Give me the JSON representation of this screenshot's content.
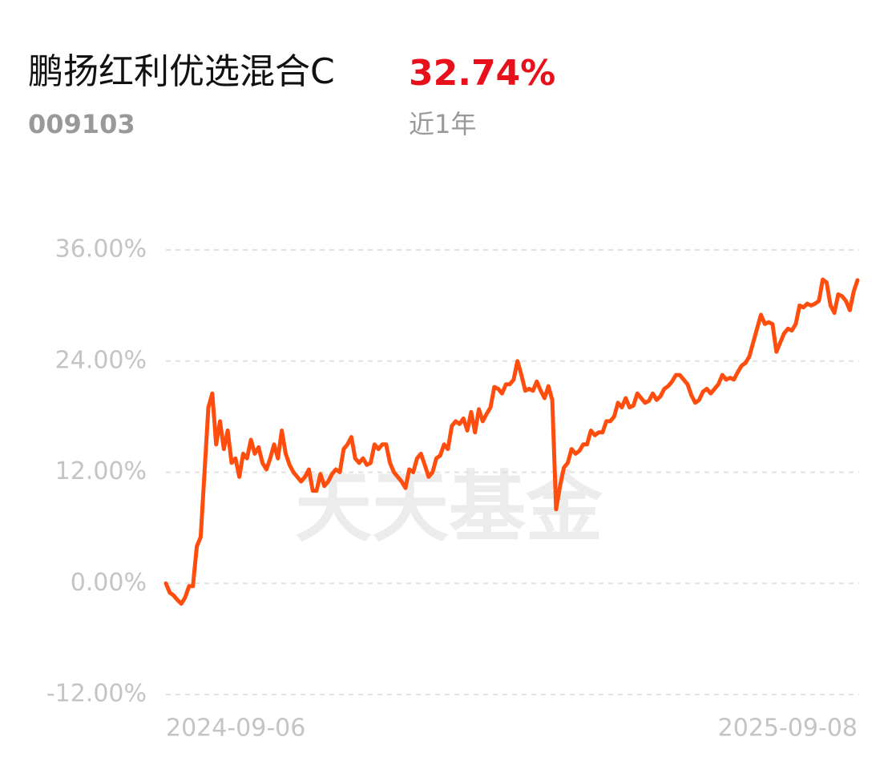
{
  "header": {
    "fund_name": "鹏扬红利优选混合C",
    "return": "32.74%",
    "code": "009103",
    "period": "近1年"
  },
  "chart_data": {
    "type": "line",
    "watermark": "天天基金",
    "color": "#ff4d0d",
    "ylim": [
      -12,
      36
    ],
    "yticks": [
      {
        "value": -12,
        "label": "-12.00%"
      },
      {
        "value": 0,
        "label": "0.00%"
      },
      {
        "value": 12,
        "label": "12.00%"
      },
      {
        "value": 24,
        "label": "24.00%"
      },
      {
        "value": 36,
        "label": "36.00%"
      }
    ],
    "grid": true,
    "categories": [
      "2024-09-06",
      null,
      null,
      null,
      null,
      null,
      null,
      null,
      null,
      null,
      null,
      null,
      null,
      null,
      null,
      null,
      null,
      null,
      null,
      null,
      null,
      null,
      null,
      null,
      null,
      null,
      null,
      null,
      null,
      null,
      null,
      null,
      null,
      null,
      null,
      null,
      null,
      null,
      null,
      null,
      null,
      null,
      null,
      null,
      null,
      null,
      null,
      null,
      null,
      null,
      null,
      null,
      null,
      null,
      null,
      null,
      null,
      null,
      null,
      null,
      null,
      null,
      null,
      null,
      null,
      null,
      null,
      null,
      null,
      null,
      null,
      null,
      null,
      null,
      null,
      null,
      null,
      null,
      null,
      null,
      null,
      null,
      null,
      null,
      null,
      null,
      null,
      null,
      null,
      null,
      null,
      null,
      null,
      null,
      null,
      null,
      null,
      null,
      null,
      null,
      null,
      null,
      null,
      null,
      null,
      null,
      null,
      null,
      null,
      null,
      null,
      null,
      null,
      null,
      null,
      null,
      null,
      null,
      null,
      null,
      null,
      null,
      null,
      null,
      null,
      null,
      null,
      null,
      null,
      null,
      null,
      null,
      null,
      null,
      null,
      null,
      null,
      null,
      null,
      null,
      null,
      null,
      null,
      null,
      null,
      null,
      null,
      null,
      null,
      null,
      null,
      null,
      null,
      null,
      null,
      null,
      null,
      null,
      null,
      null,
      null,
      null,
      null,
      null,
      null,
      null,
      null,
      null,
      null,
      null,
      null,
      null,
      null,
      null,
      null,
      null,
      null,
      null,
      null,
      "2025-09-08"
    ],
    "values": [
      0,
      -1,
      -1.3,
      -1.8,
      -2.2,
      -1.5,
      -0.3,
      -0.3,
      4,
      5,
      12,
      19,
      20.5,
      15,
      17.5,
      14.5,
      16.5,
      13,
      13.5,
      11.5,
      14,
      13.5,
      15.5,
      14,
      14.7,
      13,
      12.3,
      13.5,
      15,
      13.5,
      16.5,
      14,
      12.8,
      12,
      11.5,
      11,
      11.5,
      12.3,
      10,
      10,
      11.8,
      10.5,
      11,
      11.8,
      12.3,
      12,
      14.5,
      15,
      15.8,
      13.5,
      13,
      13.5,
      12.8,
      13,
      15,
      14.5,
      15,
      15,
      13,
      12,
      11.5,
      11,
      10.3,
      12.3,
      12,
      13.5,
      14,
      12.8,
      11.5,
      12,
      13.5,
      13.8,
      15,
      14.5,
      17,
      17.5,
      17.2,
      17.8,
      16.5,
      18.5,
      16.3,
      18.8,
      17.5,
      18.3,
      19,
      21.2,
      21,
      20.5,
      21.5,
      21.5,
      22,
      24,
      22.5,
      20.8,
      21,
      20.8,
      21.8,
      20.8,
      20,
      21.3,
      19.8,
      8,
      10.5,
      12.5,
      13,
      14.5,
      14,
      14.3,
      15,
      15,
      16.5,
      16,
      16.3,
      16.3,
      17.5,
      17.5,
      18,
      19.5,
      19,
      20,
      19,
      19.2,
      20.5,
      20,
      19.5,
      19.7,
      20.5,
      19.8,
      20.2,
      21,
      21.3,
      21.8,
      22.5,
      22.5,
      22,
      21.5,
      20.3,
      19.5,
      19.8,
      20.7,
      21,
      20.5,
      21,
      21.5,
      22.5,
      22,
      22.2,
      22,
      22.8,
      23.5,
      23.8,
      24.5,
      26,
      27.5,
      29,
      28,
      28.2,
      28,
      25,
      26,
      27,
      27.5,
      27.3,
      28,
      30,
      29.8,
      30.2,
      30,
      30.2,
      30.5,
      32.8,
      32.5,
      30,
      29.2,
      31.2,
      31,
      30.5,
      29.5,
      31.5,
      32.74
    ]
  }
}
